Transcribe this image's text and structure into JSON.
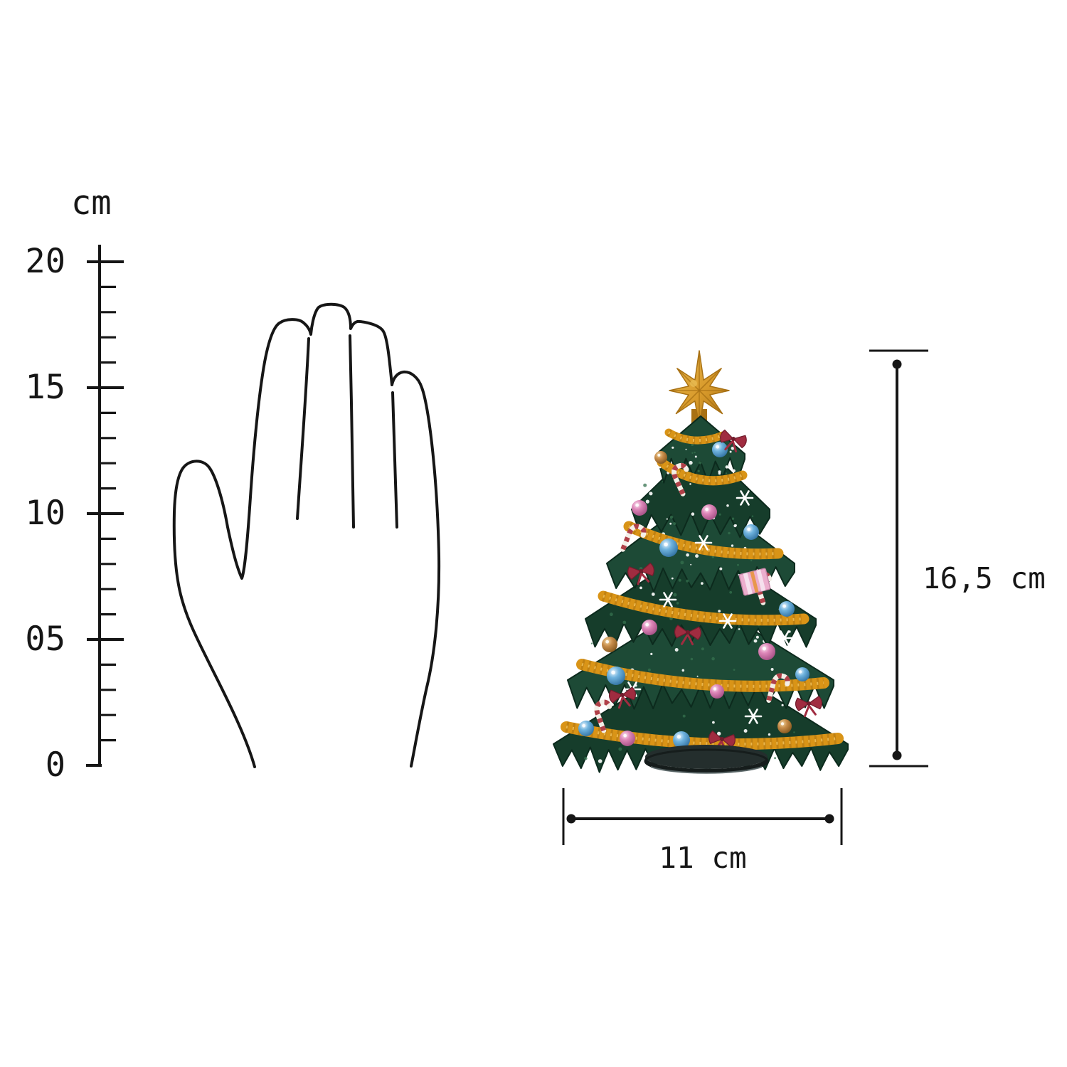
{
  "figure": {
    "background": "#ffffff",
    "ink_color": "#161616"
  },
  "ruler": {
    "unit_label": "cm",
    "labels": [
      "20",
      "15",
      "10",
      "05",
      "0"
    ],
    "major_values_cm": [
      20,
      15,
      10,
      5,
      0
    ],
    "minor_step_cm": 1,
    "range_cm": [
      0,
      20
    ]
  },
  "dimensions": {
    "height_label": "16,5 cm",
    "width_label": "11 cm"
  },
  "product": {
    "name": "decorated christmas tree figurine with star topper",
    "colors": {
      "foliage": "#1d4a36",
      "foliage_alt": "#163d2b",
      "foliage_dark": "#0c2a1d",
      "foliage_light": "#35714f",
      "garland": "#d99417",
      "garland_dark": "#a76d0d",
      "garland_light": "#f2c35c",
      "star": "#d89a2b",
      "star_light": "#e9bb52",
      "star_dark": "#a87114",
      "ball_blue": "#6fb3de",
      "ball_pink": "#d886b4",
      "ball_gold": "#b97a43",
      "bow_red": "#a02c40",
      "bow_red_dark": "#701c2c",
      "candy_white": "#f4efe7",
      "candy_red": "#b04048",
      "snow_white": "#ffffff",
      "gift_pink": "#ecaecd",
      "gift_stripe": "#e8953f",
      "base_dark": "#161d1c",
      "base_mid": "#242e2d",
      "base_rim": "#5d6a6b"
    }
  }
}
